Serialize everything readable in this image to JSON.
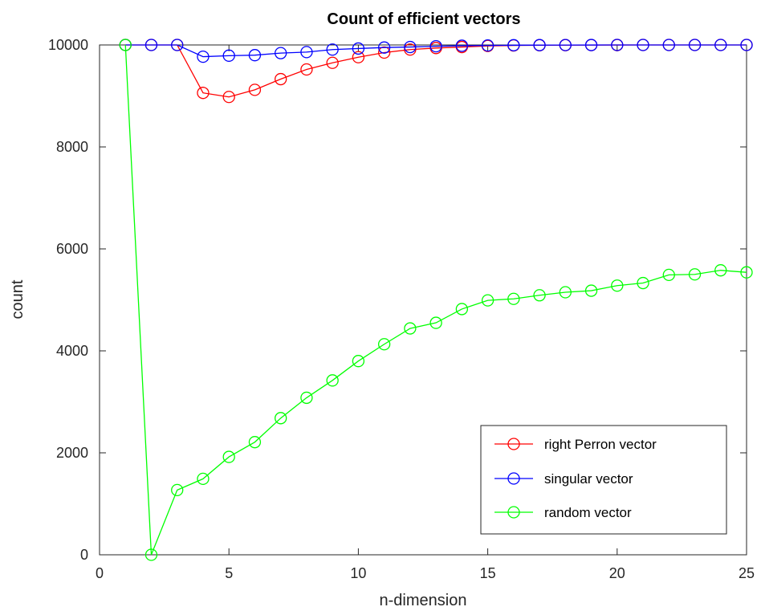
{
  "chart_data": {
    "type": "line",
    "title": "Count of efficient vectors",
    "xlabel": "n-dimension",
    "ylabel": "count",
    "xlim": [
      0,
      25
    ],
    "ylim": [
      0,
      10000
    ],
    "xticks": [
      0,
      5,
      10,
      15,
      20,
      25
    ],
    "yticks": [
      0,
      2000,
      4000,
      6000,
      8000,
      10000
    ],
    "grid": false,
    "legend_position": "bottom-right",
    "marker": "circle",
    "series": [
      {
        "name": "right Perron vector",
        "color": "#ff0000",
        "x": [
          1,
          2,
          3,
          4,
          5,
          6,
          7,
          8,
          9,
          10,
          11,
          12,
          13,
          14,
          15,
          16,
          17,
          18,
          19,
          20,
          21,
          22,
          23,
          24,
          25
        ],
        "y": [
          10000,
          10000,
          10000,
          9060,
          8980,
          9120,
          9330,
          9520,
          9650,
          9760,
          9850,
          9910,
          9940,
          9960,
          9980,
          9990,
          9995,
          9997,
          9998,
          9999,
          10000,
          10000,
          10000,
          10000,
          10000
        ]
      },
      {
        "name": "singular vector",
        "color": "#0000ff",
        "x": [
          1,
          2,
          3,
          4,
          5,
          6,
          7,
          8,
          9,
          10,
          11,
          12,
          13,
          14,
          15,
          16,
          17,
          18,
          19,
          20,
          21,
          22,
          23,
          24,
          25
        ],
        "y": [
          10000,
          10000,
          10000,
          9770,
          9790,
          9800,
          9840,
          9860,
          9910,
          9930,
          9950,
          9960,
          9975,
          9985,
          9990,
          9995,
          9997,
          9998,
          9999,
          10000,
          10000,
          10000,
          10000,
          10000,
          10000
        ]
      },
      {
        "name": "random vector",
        "color": "#00ff00",
        "x": [
          1,
          2,
          3,
          4,
          5,
          6,
          7,
          8,
          9,
          10,
          11,
          12,
          13,
          14,
          15,
          16,
          17,
          18,
          19,
          20,
          21,
          22,
          23,
          24,
          25
        ],
        "y": [
          10000,
          0,
          1270,
          1490,
          1920,
          2210,
          2680,
          3080,
          3420,
          3800,
          4130,
          4440,
          4550,
          4820,
          4990,
          5020,
          5090,
          5150,
          5180,
          5280,
          5330,
          5490,
          5500,
          5580,
          5540
        ]
      }
    ]
  }
}
